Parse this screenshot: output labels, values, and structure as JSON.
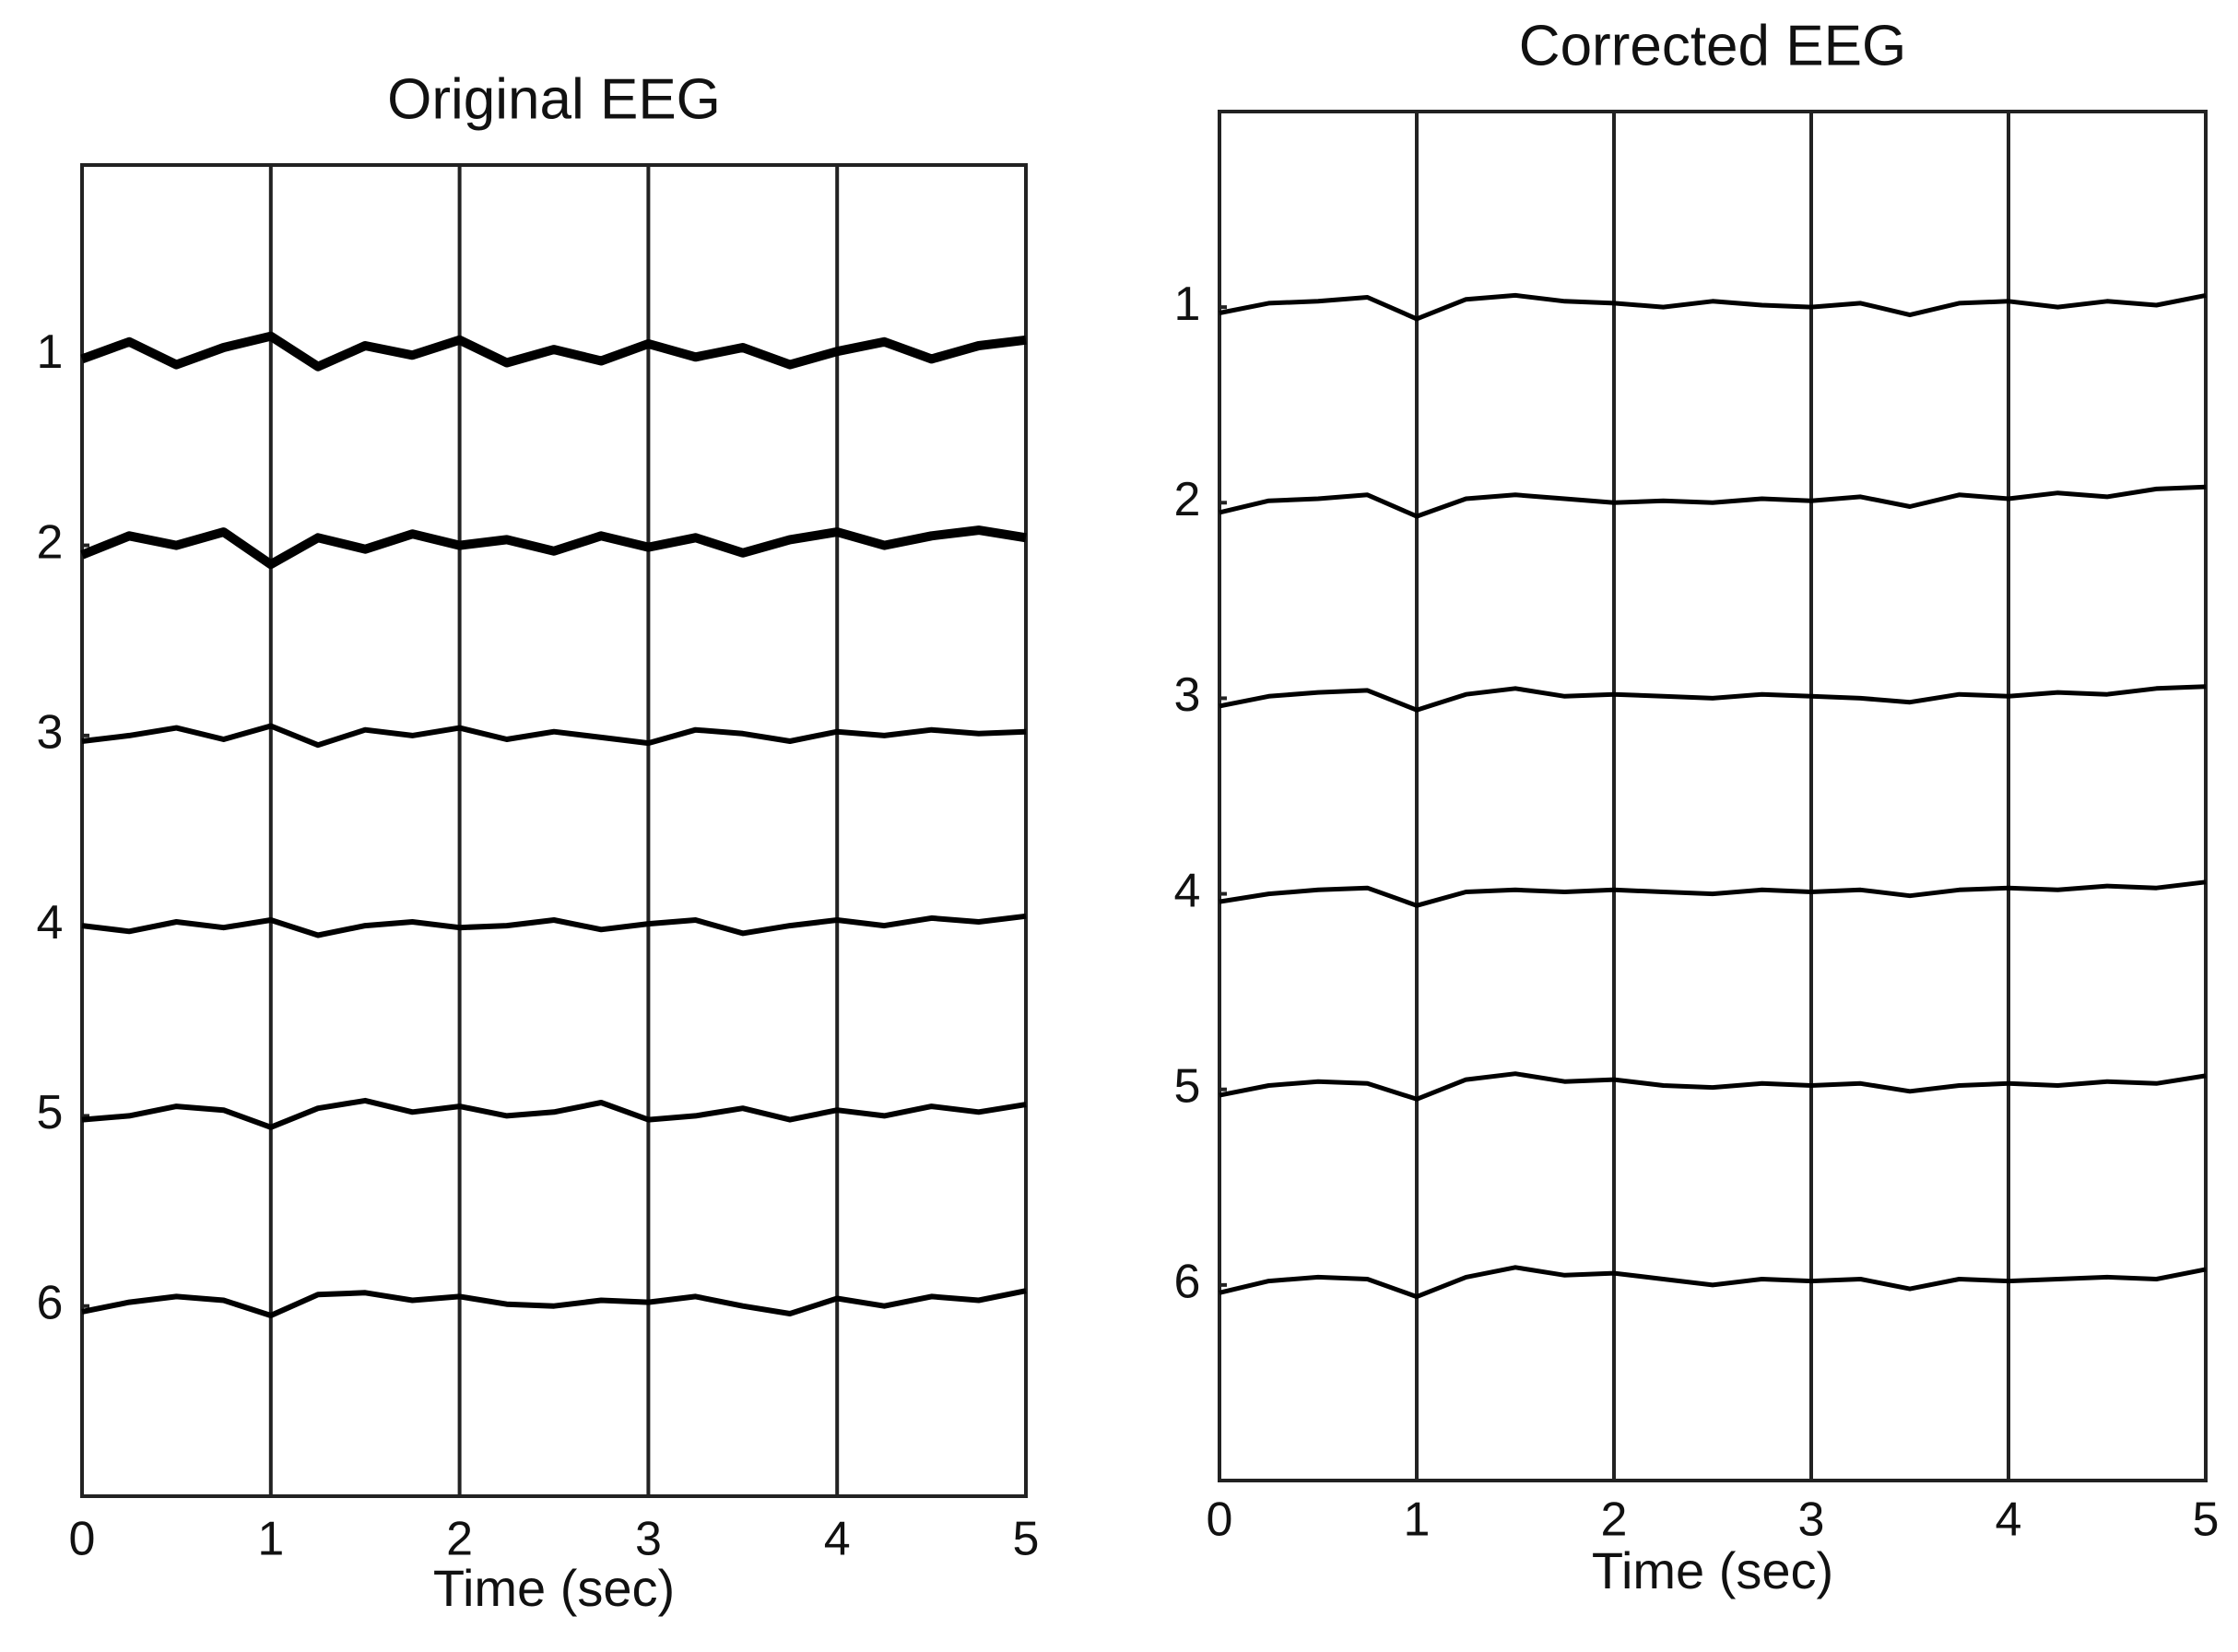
{
  "chart_data": [
    {
      "type": "line",
      "title": "Original EEG",
      "xlabel": "Time (sec)",
      "color": "#000000",
      "x": [
        0,
        0.25,
        0.5,
        0.75,
        1,
        1.25,
        1.5,
        1.75,
        2,
        2.25,
        2.5,
        2.75,
        3,
        3.25,
        3.5,
        3.75,
        4,
        4.25,
        4.5,
        4.75,
        5
      ],
      "xlim": [
        0,
        5
      ],
      "xticks": [
        0,
        1,
        2,
        3,
        4,
        5
      ],
      "ylim": [
        7,
        0
      ],
      "yticks": [
        1,
        2,
        3,
        4,
        5,
        6
      ],
      "grid": true,
      "series": [
        {
          "line_width": 10,
          "values": [
            1.02,
            0.93,
            1.05,
            0.96,
            0.9,
            1.06,
            0.95,
            1.0,
            0.92,
            1.04,
            0.97,
            1.03,
            0.94,
            1.01,
            0.96,
            1.05,
            0.98,
            0.93,
            1.02,
            0.95,
            0.92
          ]
        },
        {
          "line_width": 10,
          "values": [
            2.05,
            1.95,
            2.0,
            1.93,
            2.1,
            1.96,
            2.02,
            1.94,
            2.0,
            1.97,
            2.03,
            1.95,
            2.01,
            1.96,
            2.04,
            1.97,
            1.93,
            2.0,
            1.95,
            1.92,
            1.96
          ]
        },
        {
          "line_width": 6,
          "values": [
            3.03,
            3.0,
            2.96,
            3.02,
            2.95,
            3.05,
            2.97,
            3.0,
            2.96,
            3.02,
            2.98,
            3.01,
            3.04,
            2.97,
            2.99,
            3.03,
            2.98,
            3.0,
            2.97,
            2.99,
            2.98
          ]
        },
        {
          "line_width": 6,
          "values": [
            4.0,
            4.03,
            3.98,
            4.01,
            3.97,
            4.05,
            4.0,
            3.98,
            4.01,
            4.0,
            3.97,
            4.02,
            3.99,
            3.97,
            4.04,
            4.0,
            3.97,
            4.0,
            3.96,
            3.98,
            3.95
          ]
        },
        {
          "line_width": 6,
          "values": [
            5.02,
            5.0,
            4.95,
            4.97,
            5.06,
            4.96,
            4.92,
            4.98,
            4.95,
            5.0,
            4.98,
            4.93,
            5.02,
            5.0,
            4.96,
            5.02,
            4.97,
            5.0,
            4.95,
            4.98,
            4.94
          ]
        },
        {
          "line_width": 6,
          "values": [
            6.03,
            5.98,
            5.95,
            5.97,
            6.05,
            5.94,
            5.93,
            5.97,
            5.95,
            5.99,
            6.0,
            5.97,
            5.98,
            5.95,
            6.0,
            6.04,
            5.96,
            6.0,
            5.95,
            5.97,
            5.92
          ]
        }
      ]
    },
    {
      "type": "line",
      "title": "Corrected EEG",
      "xlabel": "Time (sec)",
      "color": "#000000",
      "x": [
        0,
        0.25,
        0.5,
        0.75,
        1,
        1.25,
        1.5,
        1.75,
        2,
        2.25,
        2.5,
        2.75,
        3,
        3.25,
        3.5,
        3.75,
        4,
        4.25,
        4.5,
        4.75,
        5
      ],
      "xlim": [
        0,
        5
      ],
      "xticks": [
        0,
        1,
        2,
        3,
        4,
        5
      ],
      "ylim": [
        7,
        0
      ],
      "yticks": [
        1,
        2,
        3,
        4,
        5,
        6
      ],
      "grid": true,
      "series": [
        {
          "line_width": 5,
          "values": [
            1.03,
            0.98,
            0.97,
            0.95,
            1.06,
            0.96,
            0.94,
            0.97,
            0.98,
            1.0,
            0.97,
            0.99,
            1.0,
            0.98,
            1.04,
            0.98,
            0.97,
            1.0,
            0.97,
            0.99,
            0.94
          ]
        },
        {
          "line_width": 5,
          "values": [
            2.05,
            1.99,
            1.98,
            1.96,
            2.07,
            1.98,
            1.96,
            1.98,
            2.0,
            1.99,
            2.0,
            1.98,
            1.99,
            1.97,
            2.02,
            1.96,
            1.98,
            1.95,
            1.97,
            1.93,
            1.92
          ]
        },
        {
          "line_width": 5,
          "values": [
            3.04,
            2.99,
            2.97,
            2.96,
            3.06,
            2.98,
            2.95,
            2.99,
            2.98,
            2.99,
            3.0,
            2.98,
            2.99,
            3.0,
            3.02,
            2.98,
            2.99,
            2.97,
            2.98,
            2.95,
            2.94
          ]
        },
        {
          "line_width": 5,
          "values": [
            4.04,
            4.0,
            3.98,
            3.97,
            4.06,
            3.99,
            3.98,
            3.99,
            3.98,
            3.99,
            4.0,
            3.98,
            3.99,
            3.98,
            4.01,
            3.98,
            3.97,
            3.98,
            3.96,
            3.97,
            3.94
          ]
        },
        {
          "line_width": 5,
          "values": [
            5.03,
            4.98,
            4.96,
            4.97,
            5.05,
            4.95,
            4.92,
            4.96,
            4.95,
            4.98,
            4.99,
            4.97,
            4.98,
            4.97,
            5.01,
            4.98,
            4.97,
            4.98,
            4.96,
            4.97,
            4.93
          ]
        },
        {
          "line_width": 5,
          "values": [
            6.04,
            5.98,
            5.96,
            5.97,
            6.06,
            5.96,
            5.91,
            5.95,
            5.94,
            5.97,
            6.0,
            5.97,
            5.98,
            5.97,
            6.02,
            5.97,
            5.98,
            5.97,
            5.96,
            5.97,
            5.92
          ]
        }
      ]
    }
  ]
}
